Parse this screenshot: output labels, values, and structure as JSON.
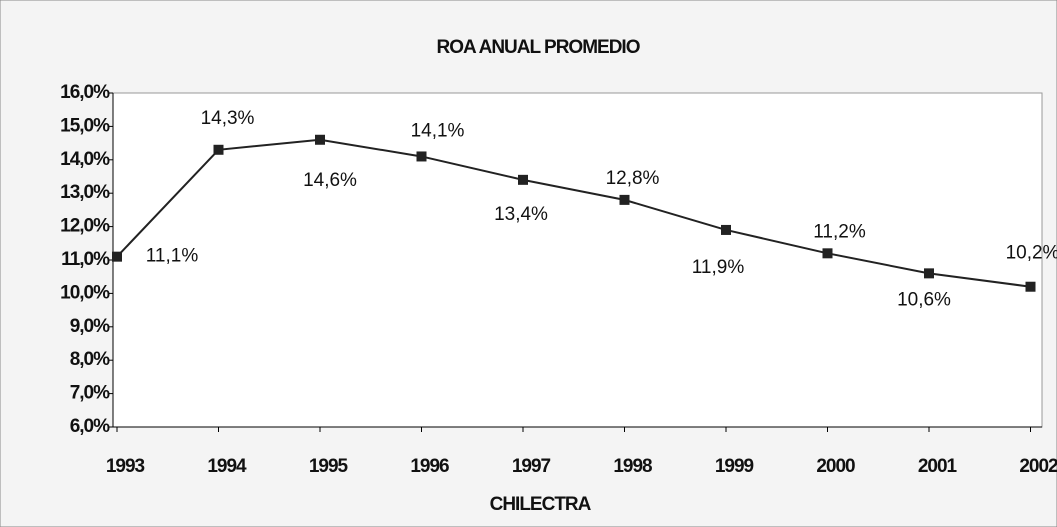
{
  "chart_data": {
    "type": "line",
    "title": "ROA ANUAL PROMEDIO",
    "x_label": "CHILECTRA",
    "categories": [
      "1993",
      "1994",
      "1995",
      "1996",
      "1997",
      "1998",
      "1999",
      "2000",
      "2001",
      "2002"
    ],
    "series": [
      {
        "name": "ROA",
        "color": "#222222",
        "values": [
          11.1,
          14.3,
          14.6,
          14.1,
          13.4,
          12.8,
          11.9,
          11.2,
          10.6,
          10.2
        ],
        "value_labels": [
          "11,1%",
          "14,3%",
          "14,6%",
          "14,1%",
          "13,4%",
          "12,8%",
          "11,9%",
          "11,2%",
          "10,6%",
          "10,2%"
        ]
      }
    ],
    "ylim": [
      6,
      16
    ],
    "yticks": [
      {
        "value": 6,
        "label": "6,0%"
      },
      {
        "value": 7,
        "label": "7,0%"
      },
      {
        "value": 8,
        "label": "8,0%"
      },
      {
        "value": 9,
        "label": "9,0%"
      },
      {
        "value": 10,
        "label": "10,0%"
      },
      {
        "value": 11,
        "label": "11,0%"
      },
      {
        "value": 12,
        "label": "12,0%"
      },
      {
        "value": 13,
        "label": "13,0%"
      },
      {
        "value": 14,
        "label": "14,0%"
      },
      {
        "value": 15,
        "label": "15,0%"
      },
      {
        "value": 16,
        "label": "16,0%"
      }
    ]
  }
}
